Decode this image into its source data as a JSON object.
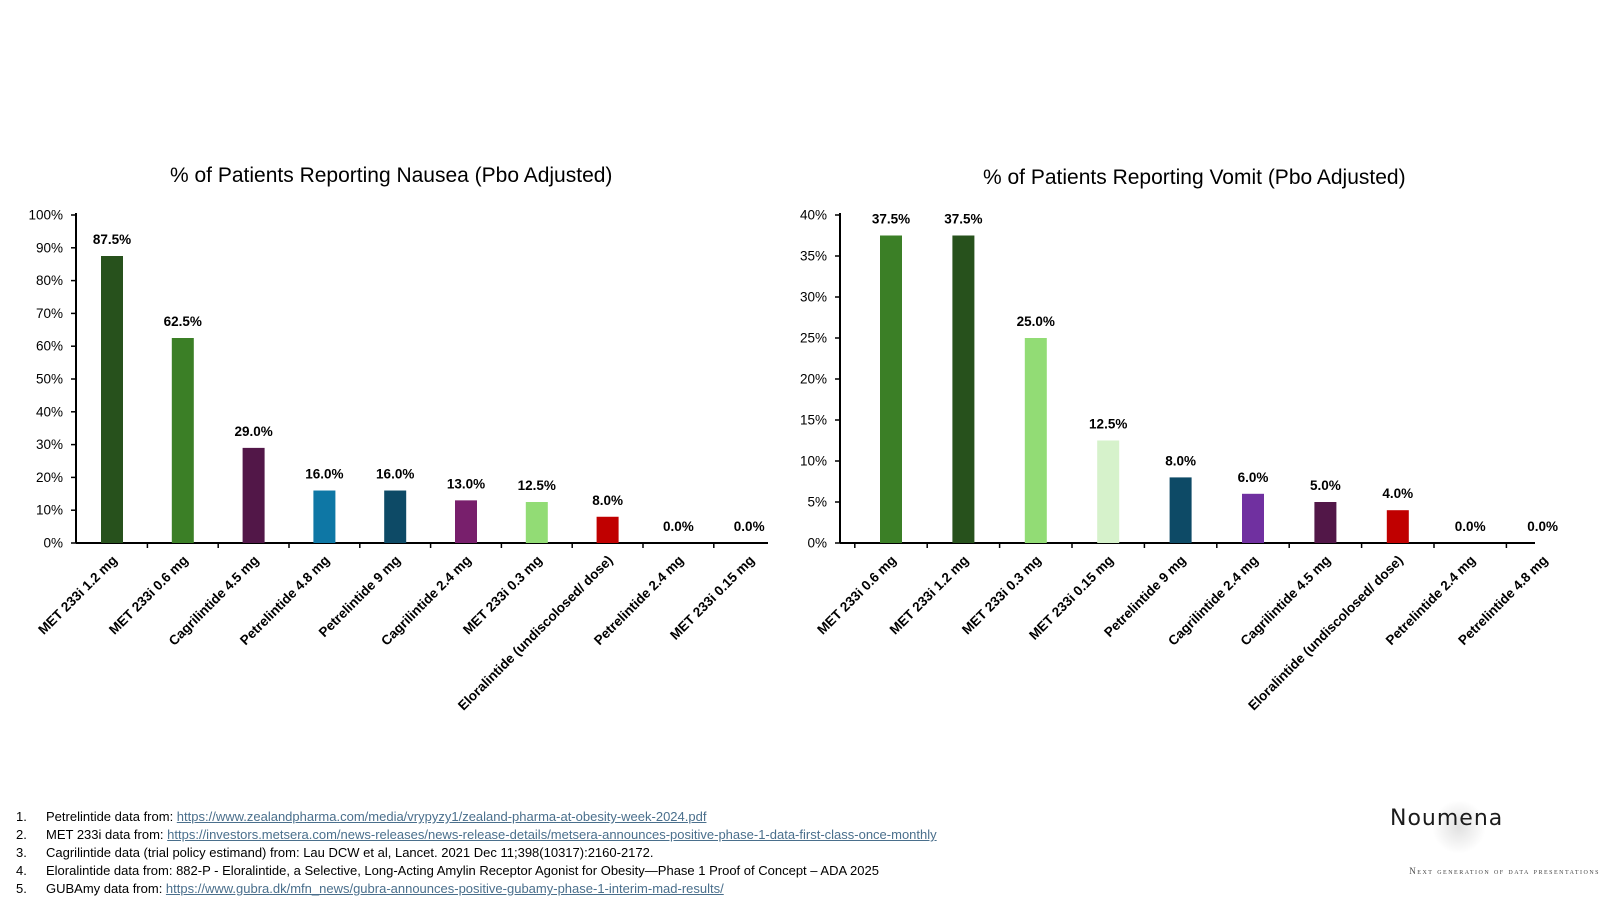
{
  "charts": [
    {
      "title": "% of Patients Reporting Nausea (Pbo Adjusted)"
    },
    {
      "title": "% of Patients Reporting Vomit (Pbo Adjusted)"
    }
  ],
  "chart_data": [
    {
      "type": "bar",
      "title": "% of Patients Reporting Nausea (Pbo Adjusted)",
      "xlabel": "",
      "ylabel": "",
      "ylim": [
        0,
        100
      ],
      "ytick_step": 10,
      "yticks": [
        "0%",
        "10%",
        "20%",
        "30%",
        "40%",
        "50%",
        "60%",
        "70%",
        "80%",
        "90%",
        "100%"
      ],
      "categories": [
        "MET 233i 1.2 mg",
        "MET 233i 0.6 mg",
        "Cagrilintide 4.5 mg",
        "Petrelintide 4.8 mg",
        "Petrelintide 9 mg",
        "Cagrilintide 2.4 mg",
        "MET 233i 0.3 mg",
        "Eloralintide (undiscolosed/ dose)",
        "Petrelintide 2.4 mg",
        "MET 233i 0.15 mg"
      ],
      "values": [
        87.5,
        62.5,
        29.0,
        16.0,
        16.0,
        13.0,
        12.5,
        8.0,
        0.0,
        0.0
      ],
      "data_labels": [
        "87.5%",
        "62.5%",
        "29.0%",
        "16.0%",
        "16.0%",
        "13.0%",
        "12.5%",
        "8.0%",
        "0.0%",
        "0.0%"
      ],
      "colors": [
        "#27511c",
        "#3b7f26",
        "#521748",
        "#0e77a5",
        "#0d4a66",
        "#781f6c",
        "#92dc75",
        "#c00000",
        "#ffffff",
        "#ffffff"
      ],
      "grid": false,
      "legend": "none"
    },
    {
      "type": "bar",
      "title": "% of Patients Reporting Vomit (Pbo Adjusted)",
      "xlabel": "",
      "ylabel": "",
      "ylim": [
        0,
        40
      ],
      "ytick_step": 5,
      "yticks": [
        "0%",
        "5%",
        "10%",
        "15%",
        "20%",
        "25%",
        "30%",
        "35%",
        "40%"
      ],
      "categories": [
        "MET 233i 0.6 mg",
        "MET 233i 1.2 mg",
        "MET 233i 0.3 mg",
        "MET 233i 0.15 mg",
        "Petrelintide 9 mg",
        "Cagrilintide 2.4 mg",
        "Cagrilintide 4.5 mg",
        "Eloralintide (undiscolosed/ dose)",
        "Petrelintide 2.4 mg",
        "Petrelintide 4.8 mg"
      ],
      "values": [
        37.5,
        37.5,
        25.0,
        12.5,
        8.0,
        6.0,
        5.0,
        4.0,
        0.0,
        0.0
      ],
      "data_labels": [
        "37.5%",
        "37.5%",
        "25.0%",
        "12.5%",
        "8.0%",
        "6.0%",
        "5.0%",
        "4.0%",
        "0.0%",
        "0.0%"
      ],
      "colors": [
        "#3b7f26",
        "#27511c",
        "#92dc75",
        "#d6f2cb",
        "#0d4a66",
        "#7030a0",
        "#521748",
        "#c00000",
        "#ffffff",
        "#ffffff"
      ],
      "grid": false,
      "legend": "none"
    }
  ],
  "footnotes": [
    {
      "num": "1.",
      "text": "Petrelintide data from: ",
      "link": "https://www.zealandpharma.com/media/vrypyzy1/zealand-pharma-at-obesity-week-2024.pdf"
    },
    {
      "num": "2.",
      "text": "MET 233i data from: ",
      "link": "https://investors.metsera.com/news-releases/news-release-details/metsera-announces-positive-phase-1-data-first-class-once-monthly"
    },
    {
      "num": "3.",
      "text": "Cagrilintide data (trial policy estimand) from: Lau DCW et al, Lancet. 2021 Dec 11;398(10317):2160-2172.",
      "link": ""
    },
    {
      "num": "4.",
      "text": "Eloralintide data from: 882-P - Eloralintide, a Selective, Long-Acting Amylin Receptor Agonist for Obesity—Phase 1 Proof of Concept – ADA 2025",
      "link": ""
    },
    {
      "num": "5.",
      "text": "GUBAmy data from: ",
      "link": "https://www.gubra.dk/mfn_news/gubra-announces-positive-gubamy-phase-1-interim-mad-results/"
    }
  ],
  "logo": {
    "name": "Noumena",
    "tagline": "Next generation of data presentations"
  }
}
